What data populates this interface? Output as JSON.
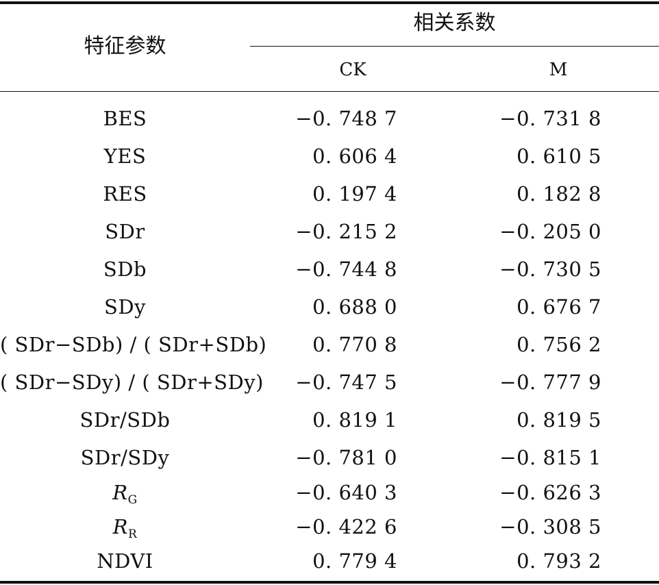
{
  "header": {
    "feature_label": "特征参数",
    "correlation_label": "相关系数",
    "ck_label": "CK",
    "m_label": "M"
  },
  "rows": [
    {
      "feature": "BES",
      "ck": "−0. 748 7",
      "m": "−0. 731 8"
    },
    {
      "feature": "YES",
      "ck": "0. 606 4",
      "m": "0. 610 5"
    },
    {
      "feature": "RES",
      "ck": "0. 197 4",
      "m": "0. 182 8"
    },
    {
      "feature": "SDr",
      "ck": "−0. 215 2",
      "m": "−0. 205 0"
    },
    {
      "feature": "SDb",
      "ck": "−0. 744 8",
      "m": "−0. 730 5"
    },
    {
      "feature": "SDy",
      "ck": "0. 688 0",
      "m": "0. 676 7"
    },
    {
      "feature": "( SDr−SDb) / ( SDr+SDb)",
      "ck": "0. 770 8",
      "m": "0. 756 2"
    },
    {
      "feature": "( SDr−SDy) / ( SDr+SDy)",
      "ck": "−0. 747 5",
      "m": "−0. 777 9"
    },
    {
      "feature": "SDr/SDb",
      "ck": "0. 819 1",
      "m": "0. 819 5"
    },
    {
      "feature": "SDr/SDy",
      "ck": "−0. 781 0",
      "m": "−0. 815 1"
    },
    {
      "feature_var": "R",
      "feature_sub": "G",
      "ck": "−0. 640 3",
      "m": "−0. 626 3"
    },
    {
      "feature_var": "R",
      "feature_sub": "R",
      "ck": "−0. 422 6",
      "m": "−0. 308 5"
    },
    {
      "feature": "NDVI",
      "ck": "0. 779 4",
      "m": "0. 793 2"
    }
  ]
}
